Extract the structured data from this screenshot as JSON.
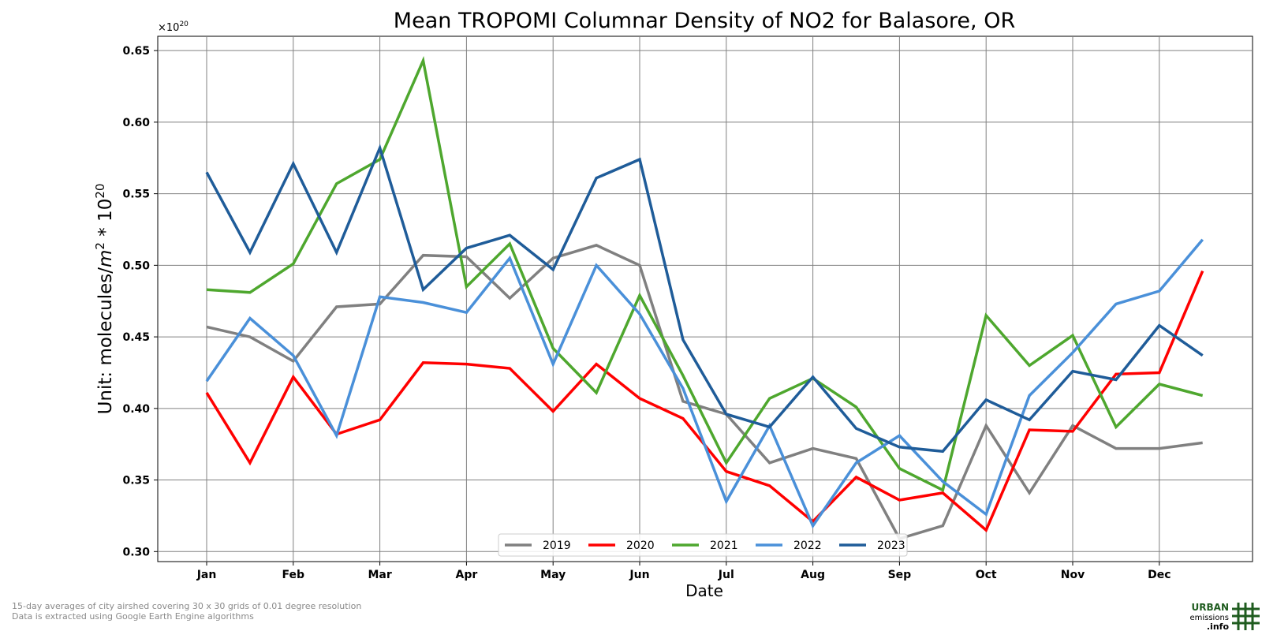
{
  "chart_data": {
    "type": "line",
    "title": "Mean TROPOMI Columnar Density of NO2 for Balasore, OR",
    "xlabel": "Date",
    "ylabel_prefix": "Unit: molecules/",
    "ylabel_unit_base": "m",
    "ylabel_unit_exp": "2",
    "ylabel_mid": " * 10",
    "ylabel_exp": "20",
    "y_multiplier_base": "×10",
    "y_multiplier_exp": "20",
    "ylim": [
      0.293,
      0.66
    ],
    "yticks": [
      "0.30",
      "0.35",
      "0.40",
      "0.45",
      "0.50",
      "0.55",
      "0.60",
      "0.65"
    ],
    "ytick_values": [
      0.3,
      0.35,
      0.4,
      0.45,
      0.5,
      0.55,
      0.6,
      0.65
    ],
    "x_month_labels": [
      "Jan",
      "Feb",
      "Mar",
      "Apr",
      "May",
      "Jun",
      "Jul",
      "Aug",
      "Sep",
      "Oct",
      "Nov",
      "Dec"
    ],
    "grid": true,
    "legend_position": "bottom-center",
    "series": [
      {
        "name": "2019",
        "color": "#808080",
        "values": [
          0.457,
          0.45,
          0.433,
          0.471,
          0.473,
          0.507,
          0.506,
          0.477,
          0.505,
          0.514,
          0.5,
          0.405,
          0.396,
          0.362,
          0.372,
          0.365,
          0.309,
          0.318,
          0.388,
          0.341,
          0.388,
          0.372,
          0.372,
          0.376
        ]
      },
      {
        "name": "2020",
        "color": "#ff0000",
        "values": [
          0.411,
          0.362,
          0.422,
          0.382,
          0.392,
          0.432,
          0.431,
          0.428,
          0.398,
          0.431,
          0.407,
          0.393,
          0.356,
          0.346,
          0.321,
          0.352,
          0.336,
          0.341,
          0.315,
          0.385,
          0.384,
          0.424,
          0.425,
          0.496
        ]
      },
      {
        "name": "2021",
        "color": "#4ea72e",
        "values": [
          0.483,
          0.481,
          0.501,
          0.557,
          0.574,
          0.643,
          0.485,
          0.515,
          0.442,
          0.411,
          0.479,
          0.423,
          0.362,
          0.407,
          0.421,
          0.401,
          0.358,
          0.343,
          0.465,
          0.43,
          0.451,
          0.387,
          0.417,
          0.409
        ]
      },
      {
        "name": "2022",
        "color": "#4a90d9",
        "values": [
          0.419,
          0.463,
          0.437,
          0.381,
          0.478,
          0.474,
          0.467,
          0.505,
          0.431,
          0.5,
          0.466,
          0.414,
          0.335,
          0.388,
          0.318,
          0.362,
          0.381,
          0.349,
          0.326,
          0.409,
          0.439,
          0.473,
          0.482,
          0.518
        ]
      },
      {
        "name": "2023",
        "color": "#1f5c99",
        "values": [
          0.565,
          0.509,
          0.571,
          0.509,
          0.582,
          0.483,
          0.512,
          0.521,
          0.497,
          0.561,
          0.574,
          0.448,
          0.396,
          0.387,
          0.422,
          0.386,
          0.373,
          0.37,
          0.406,
          0.392,
          0.426,
          0.42,
          0.458,
          0.437
        ]
      }
    ]
  },
  "footnotes": {
    "line1": "15-day averages of city airshed covering 30 x 30 grids of 0.01 degree resolution",
    "line2": "Data is extracted using Google Earth Engine algorithms"
  },
  "logo": {
    "line1": "URBAN",
    "line2": "emissions",
    "line3": ".info",
    "color": "#1f5c1f"
  }
}
